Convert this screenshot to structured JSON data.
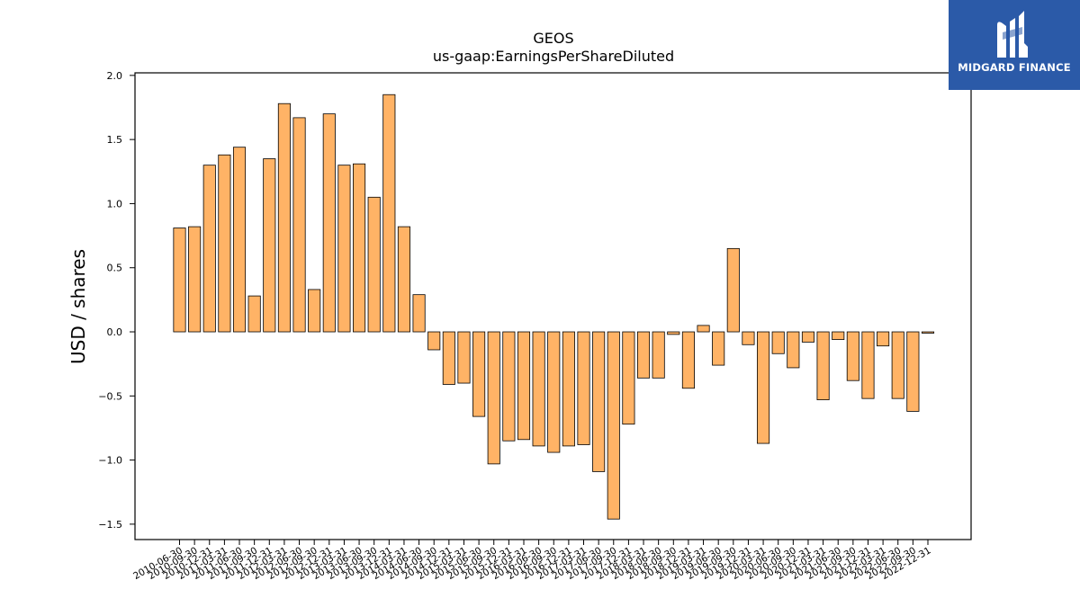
{
  "brand": {
    "name": "MIDGARD FINANCE",
    "background": "#2b5aa8",
    "logo_icon": "midgard-logo-icon"
  },
  "chart_data": {
    "type": "bar",
    "title": "GEOS",
    "subtitle": "us-gaap:EarningsPerShareDiluted",
    "xlabel": "",
    "ylabel": "USD / shares",
    "ylim": [
      -1.62,
      2.02
    ],
    "yticks": [
      -1.5,
      -1.0,
      -0.5,
      0.0,
      0.5,
      1.0,
      1.5,
      2.0
    ],
    "grid": false,
    "bar_color": "#ffb366",
    "bar_edge_color": "#000000",
    "categories": [
      "2010-06-30",
      "2010-09-30",
      "2010-12-31",
      "2011-03-31",
      "2011-06-30",
      "2011-09-30",
      "2011-12-31",
      "2012-03-31",
      "2012-06-30",
      "2012-09-30",
      "2012-12-31",
      "2013-03-31",
      "2013-06-30",
      "2013-09-30",
      "2013-12-31",
      "2014-03-31",
      "2014-06-30",
      "2014-09-30",
      "2014-12-31",
      "2015-03-31",
      "2015-06-30",
      "2015-09-30",
      "2015-12-31",
      "2016-03-31",
      "2016-06-30",
      "2016-09-30",
      "2016-12-31",
      "2017-03-31",
      "2017-06-30",
      "2017-09-30",
      "2017-12-31",
      "2018-03-31",
      "2018-06-30",
      "2018-09-30",
      "2018-12-31",
      "2019-03-31",
      "2019-06-30",
      "2019-09-30",
      "2019-12-31",
      "2020-03-31",
      "2020-06-30",
      "2020-09-30",
      "2020-12-31",
      "2021-03-31",
      "2021-06-30",
      "2021-09-30",
      "2021-12-31",
      "2022-03-31",
      "2022-06-30",
      "2022-09-30",
      "2022-12-31"
    ],
    "values": [
      0.81,
      0.82,
      1.3,
      1.38,
      1.44,
      0.28,
      1.35,
      1.78,
      1.67,
      0.33,
      1.7,
      1.3,
      1.31,
      1.05,
      1.85,
      0.82,
      0.29,
      -0.14,
      -0.41,
      -0.4,
      -0.66,
      -1.03,
      -0.85,
      -0.84,
      -0.89,
      -0.94,
      -0.89,
      -0.88,
      -1.09,
      -1.46,
      -0.72,
      -0.36,
      -0.36,
      -0.02,
      -0.44,
      0.05,
      -0.26,
      0.65,
      -0.1,
      -0.87,
      -0.17,
      -0.28,
      -0.08,
      -0.53,
      -0.06,
      -0.38,
      -0.52,
      -0.11,
      -0.52,
      -0.62,
      -0.01
    ]
  }
}
